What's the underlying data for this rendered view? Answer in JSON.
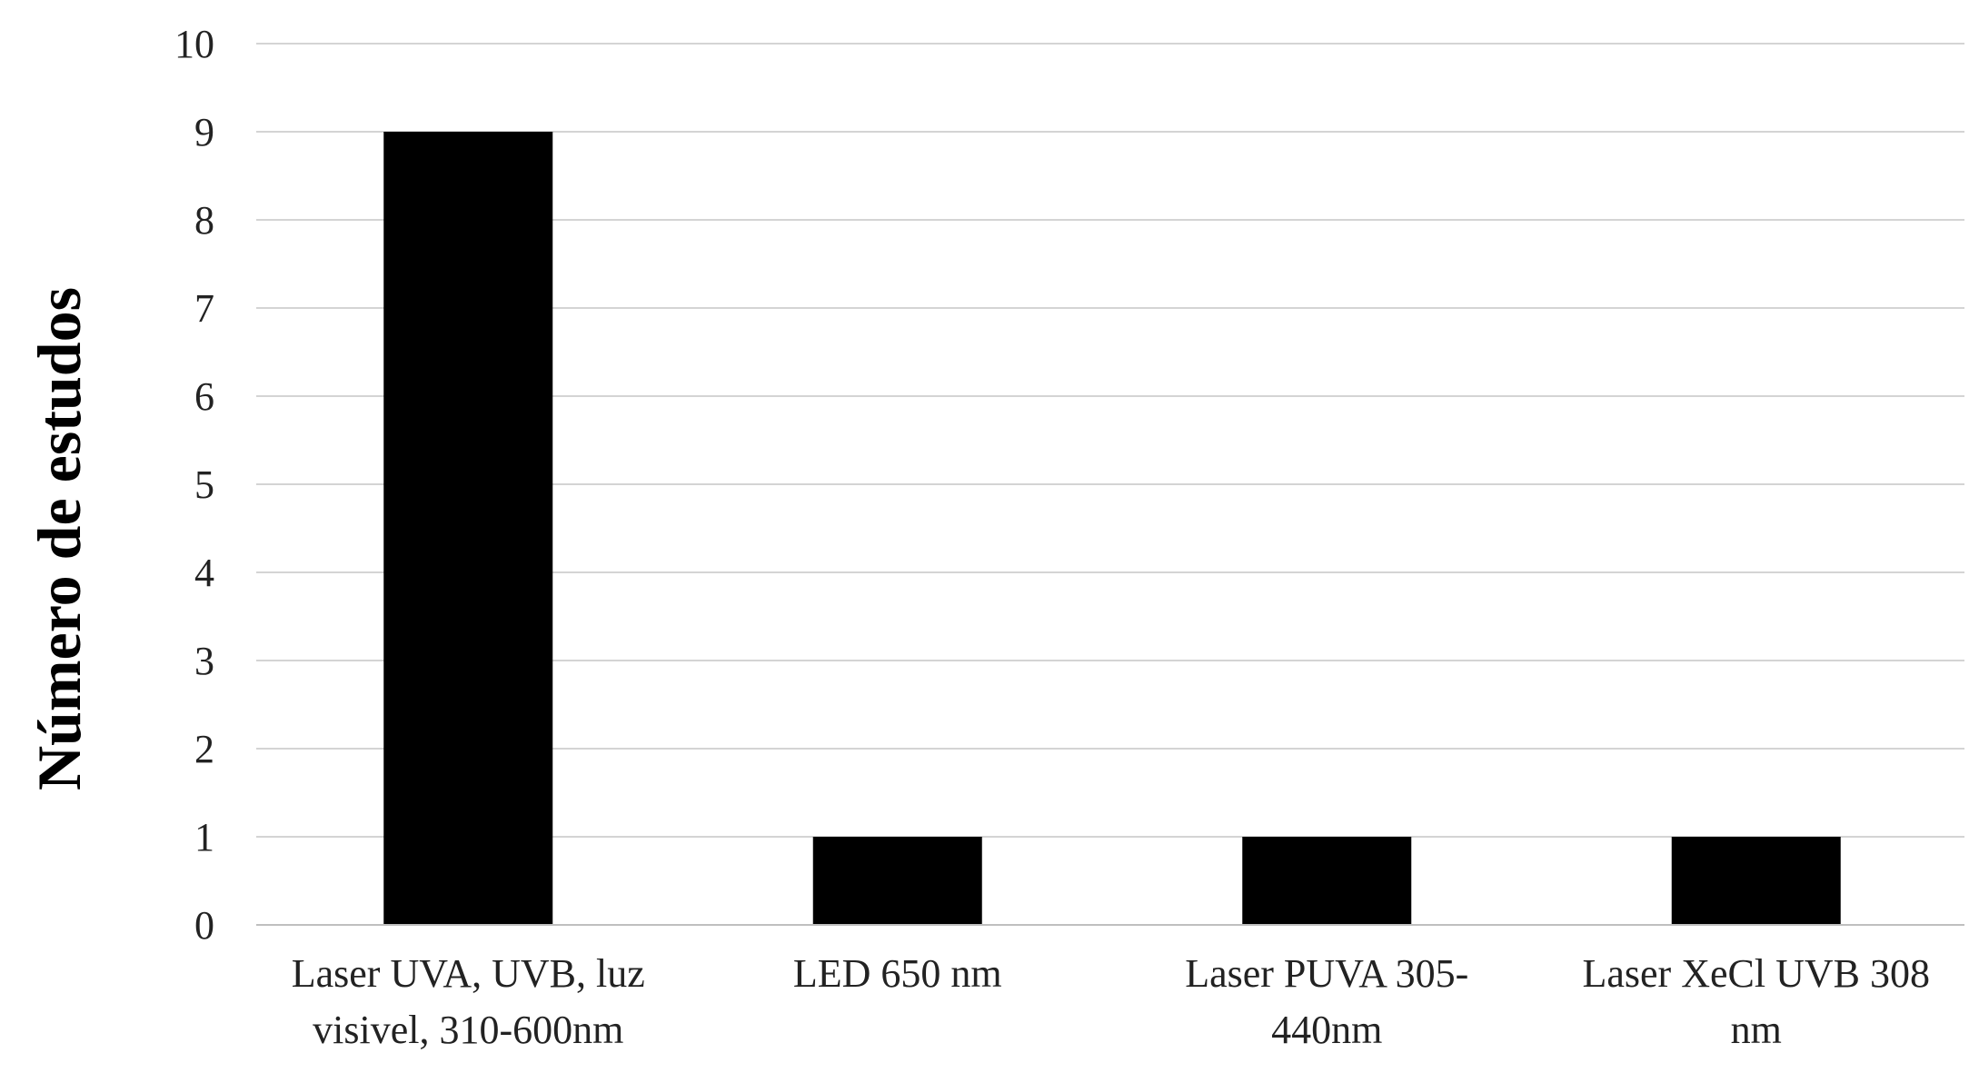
{
  "chart_data": {
    "type": "bar",
    "categories": [
      [
        "Laser UVA, UVB, luz",
        "visivel, 310-600nm"
      ],
      [
        "LED 650 nm"
      ],
      [
        "Laser PUVA 305-",
        "440nm"
      ],
      [
        "Laser XeCl UVB 308",
        "nm"
      ]
    ],
    "values": [
      9,
      1,
      1,
      1
    ],
    "title": "",
    "xlabel": "",
    "ylabel": "Número de estudos",
    "ylim": [
      0,
      10
    ],
    "yticks": [
      "0",
      "1",
      "2",
      "3",
      "4",
      "5",
      "6",
      "7",
      "8",
      "9",
      "10"
    ],
    "grid": true,
    "legend": "none",
    "bar_color": "#000000"
  }
}
